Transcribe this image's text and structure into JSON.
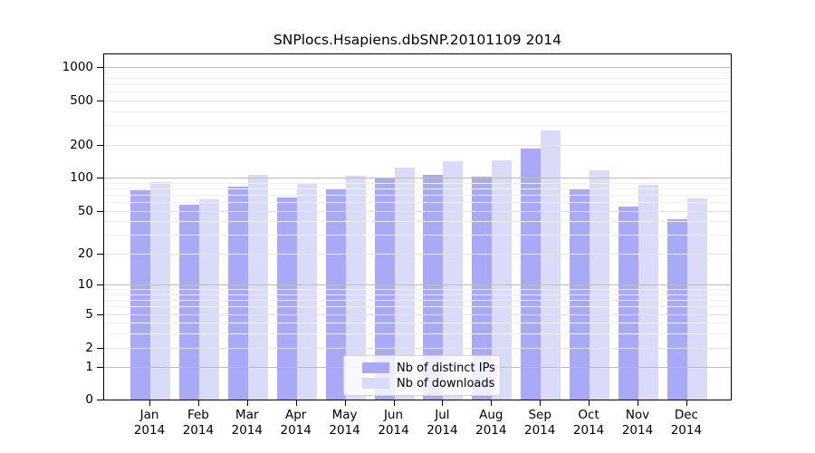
{
  "window": {
    "title": "SNPlocs.Hsapiens.dbSNP.20101109 2014"
  },
  "chart_data": {
    "type": "bar",
    "title": "SNPlocs.Hsapiens.dbSNP.20101109 2014",
    "y_scale": "log10(1+v)",
    "grid": true,
    "legend_position": "bottom-center",
    "categories": [
      "Jan",
      "Feb",
      "Mar",
      "Apr",
      "May",
      "Jun",
      "Jul",
      "Aug",
      "Sep",
      "Oct",
      "Nov",
      "Dec"
    ],
    "category_year": "2014",
    "series": [
      {
        "name": "Nb of distinct IPs",
        "color": "#a9a9f7",
        "values": [
          78,
          58,
          84,
          67,
          80,
          100,
          108,
          105,
          189,
          82,
          56,
          43
        ]
      },
      {
        "name": "Nb of downloads",
        "color": "#dadaf9",
        "values": [
          94,
          65,
          109,
          92,
          107,
          127,
          143,
          148,
          276,
          120,
          88,
          66
        ]
      }
    ],
    "y_ticks": [
      0,
      1,
      2,
      5,
      10,
      20,
      50,
      100,
      200,
      500,
      1000
    ],
    "y_major_ticks": [
      1,
      10,
      100,
      1000
    ],
    "y_minor_gridlines": [
      3,
      4,
      6,
      7,
      8,
      9,
      30,
      40,
      60,
      70,
      80,
      90,
      300,
      400,
      600,
      700,
      800,
      900
    ],
    "ylim": [
      0,
      1340
    ],
    "xlabel": "",
    "ylabel": ""
  },
  "colors": {
    "grid_major": "#bdbdbd",
    "grid_mid": "#e3e3e3",
    "grid_minor": "#f1f1f1",
    "axis": "#000000",
    "legend_border": "#d3d3d3"
  }
}
